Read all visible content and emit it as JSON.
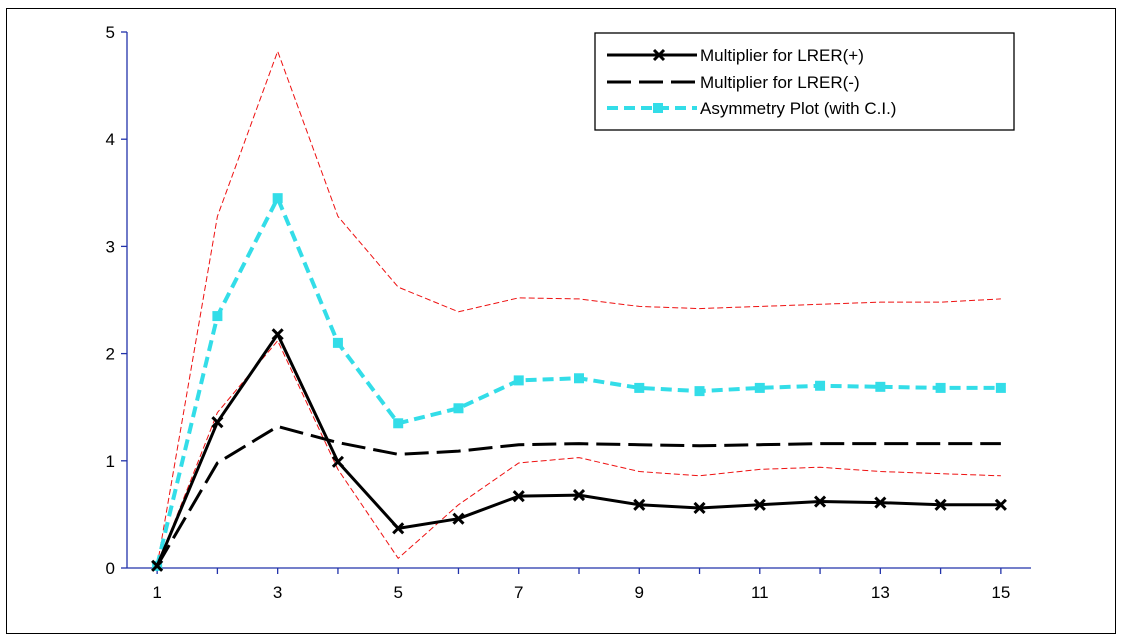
{
  "chart_data": {
    "type": "line",
    "title": "",
    "xlabel": "",
    "ylabel": "",
    "x": [
      1,
      2,
      3,
      4,
      5,
      6,
      7,
      8,
      9,
      10,
      11,
      12,
      13,
      14,
      15
    ],
    "x_tick_labels": [
      "1",
      "3",
      "5",
      "7",
      "9",
      "11",
      "13",
      "15"
    ],
    "y_tick_labels": [
      "0",
      "1",
      "2",
      "3",
      "4",
      "5"
    ],
    "xlim": [
      0.5,
      15.5
    ],
    "ylim": [
      0,
      5
    ],
    "grid": false,
    "legend_position": "top-right",
    "series": [
      {
        "name": "Multiplier for LRER(+)",
        "color": "#000000",
        "style": "solid",
        "marker": "x",
        "values": [
          0.02,
          1.36,
          2.18,
          0.99,
          0.37,
          0.46,
          0.67,
          0.68,
          0.59,
          0.56,
          0.59,
          0.62,
          0.61,
          0.59,
          0.59
        ]
      },
      {
        "name": "Multiplier for LRER(-)",
        "color": "#000000",
        "style": "dashed",
        "marker": "none",
        "values": [
          0.02,
          0.98,
          1.32,
          1.17,
          1.06,
          1.09,
          1.15,
          1.16,
          1.15,
          1.14,
          1.15,
          1.16,
          1.16,
          1.16,
          1.16
        ]
      },
      {
        "name": "Asymmetry Plot (with C.I.)",
        "color": "#33dde8",
        "style": "dashed",
        "marker": "square",
        "values": [
          0.02,
          2.35,
          3.45,
          2.1,
          1.35,
          1.49,
          1.75,
          1.77,
          1.68,
          1.65,
          1.68,
          1.7,
          1.69,
          1.68,
          1.68
        ]
      },
      {
        "role": "ci-upper",
        "color": "#ee1111",
        "style": "thin-dashed",
        "marker": "none",
        "values": [
          0.02,
          3.28,
          4.82,
          3.28,
          2.62,
          2.39,
          2.52,
          2.51,
          2.44,
          2.42,
          2.44,
          2.46,
          2.48,
          2.48,
          2.51
        ]
      },
      {
        "role": "ci-lower",
        "color": "#ee1111",
        "style": "thin-dashed",
        "marker": "none",
        "values": [
          0.02,
          1.45,
          2.12,
          0.92,
          0.09,
          0.59,
          0.98,
          1.03,
          0.9,
          0.86,
          0.92,
          0.94,
          0.9,
          0.88,
          0.86
        ]
      }
    ]
  }
}
